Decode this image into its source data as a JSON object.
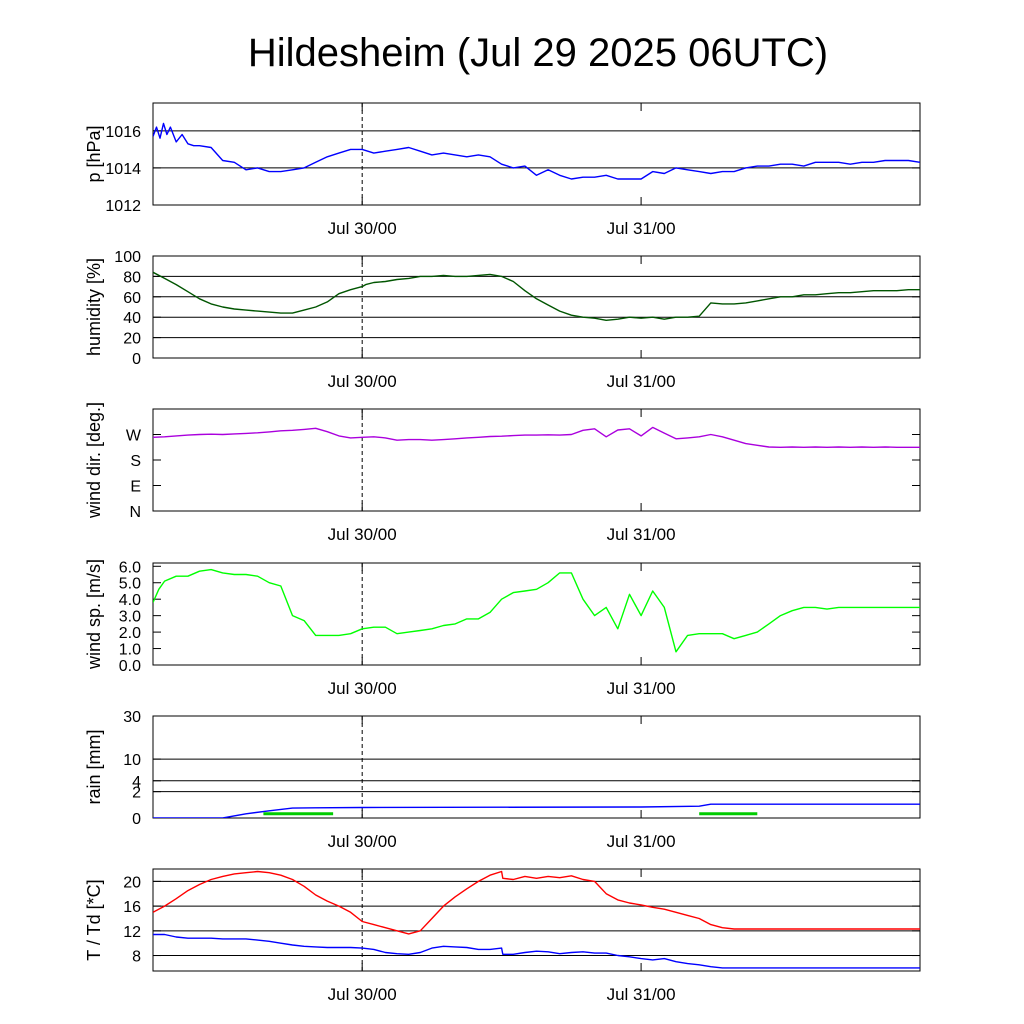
{
  "title": "Hildesheim (Jul 29 2025 06UTC)",
  "colors": {
    "pressure": "#0000ff",
    "humidity": "#005500",
    "wind_dir": "#aa00dd",
    "wind_speed": "#00ff00",
    "rain_total": "#0000ff",
    "rain_rate": "#00cc00",
    "temperature": "#ff0000",
    "dewpoint": "#0000ff"
  },
  "x_tick_labels": [
    "Jul 30/00",
    "Jul 31/00"
  ],
  "chart_data": [
    {
      "type": "line",
      "ylabel": "p [hPa]",
      "ylim": [
        1012,
        1017.5
      ],
      "y_ticks": [
        1012,
        1014,
        1016
      ],
      "y_tick_labels": [
        "1012",
        "1014",
        "1016"
      ],
      "grid_y": [
        1014,
        1016
      ],
      "x_ticks_hours": [
        18,
        42,
        66
      ],
      "x_tick_labels": [
        "Jul 30/00",
        "Jul 31/00"
      ],
      "series": [
        {
          "color_key": "pressure",
          "x": [
            0,
            0.3,
            0.6,
            0.9,
            1.2,
            1.5,
            2,
            2.5,
            3,
            3.5,
            4,
            5,
            6,
            7,
            8,
            9,
            10,
            11,
            12,
            13,
            14,
            15,
            16,
            17,
            18,
            19,
            20,
            21,
            22,
            23,
            24,
            25,
            26,
            27,
            28,
            29,
            30,
            31,
            32,
            33,
            34,
            35,
            36,
            37,
            38,
            39,
            40,
            41,
            42,
            43,
            44,
            45,
            46,
            47,
            48,
            49,
            50,
            51,
            52,
            53,
            54,
            55,
            56,
            57,
            58,
            59,
            60,
            61,
            62,
            63,
            64,
            65,
            66
          ],
          "y": [
            1015.7,
            1016.2,
            1015.6,
            1016.4,
            1015.8,
            1016.2,
            1015.4,
            1015.8,
            1015.3,
            1015.2,
            1015.2,
            1015.1,
            1014.4,
            1014.3,
            1013.9,
            1014.0,
            1013.8,
            1013.8,
            1013.9,
            1014.0,
            1014.3,
            1014.6,
            1014.8,
            1015.0,
            1015.0,
            1014.8,
            1014.9,
            1015.0,
            1015.1,
            1014.9,
            1014.7,
            1014.8,
            1014.7,
            1014.6,
            1014.7,
            1014.6,
            1014.2,
            1014.0,
            1014.1,
            1013.6,
            1013.9,
            1013.6,
            1013.4,
            1013.5,
            1013.5,
            1013.6,
            1013.4,
            1013.4,
            1013.4,
            1013.8,
            1013.7,
            1014.0,
            1013.9,
            1013.8,
            1013.7,
            1013.8,
            1013.8,
            1014.0,
            1014.1,
            1014.1,
            1014.2,
            1014.2,
            1014.1,
            1014.3,
            1014.3,
            1014.3,
            1014.2,
            1014.3,
            1014.3,
            1014.4,
            1014.4,
            1014.4,
            1014.3
          ]
        }
      ]
    },
    {
      "type": "line",
      "ylabel": "humidity [%]",
      "ylim": [
        0,
        100
      ],
      "y_ticks": [
        0,
        20,
        40,
        60,
        80,
        100
      ],
      "y_tick_labels": [
        "0",
        "20",
        "40",
        "60",
        "80",
        "100"
      ],
      "grid_y": [
        20,
        40,
        60,
        80
      ],
      "x_ticks_hours": [
        18,
        42,
        66
      ],
      "x_tick_labels": [
        "Jul 30/00",
        "Jul 31/00"
      ],
      "series": [
        {
          "color_key": "humidity",
          "x": [
            0,
            1,
            2,
            3,
            4,
            5,
            6,
            7,
            8,
            9,
            10,
            11,
            12,
            13,
            14,
            15,
            16,
            17,
            18,
            18.3,
            19,
            20,
            21,
            22,
            23,
            24,
            25,
            26,
            27,
            28,
            29,
            30,
            31,
            32,
            33,
            34,
            35,
            36,
            37,
            38,
            39,
            40,
            41,
            42,
            43,
            44,
            45,
            46,
            47,
            48,
            49,
            50,
            51,
            52,
            53,
            54,
            55,
            56,
            57,
            58,
            59,
            60,
            61,
            62,
            63,
            64,
            65,
            66
          ],
          "y": [
            84,
            78,
            72,
            65,
            58,
            53,
            50,
            48,
            47,
            46,
            45,
            44,
            44,
            47,
            50,
            55,
            63,
            67,
            70,
            72,
            74,
            75,
            77,
            78,
            80,
            80,
            81,
            80,
            80,
            81,
            82,
            80,
            75,
            66,
            58,
            52,
            46,
            42,
            40,
            39,
            37,
            38,
            40,
            39,
            40,
            38,
            40,
            40,
            41,
            54,
            53,
            53,
            54,
            56,
            58,
            60,
            60,
            62,
            62,
            63,
            64,
            64,
            65,
            66,
            66,
            66,
            67,
            67
          ]
        }
      ]
    },
    {
      "type": "line",
      "ylabel": "wind dir. [deg.]",
      "ylim": [
        0,
        360
      ],
      "y_ticks": [
        0,
        90,
        180,
        270
      ],
      "y_tick_labels": [
        "N",
        "E",
        "S",
        "W"
      ],
      "grid_y": [],
      "x_ticks_hours": [
        18,
        42,
        66
      ],
      "x_tick_labels": [
        "Jul 30/00",
        "Jul 31/00"
      ],
      "series": [
        {
          "color_key": "wind_dir",
          "x": [
            0,
            1,
            2,
            3,
            4,
            5,
            6,
            7,
            8,
            9,
            10,
            11,
            12,
            13,
            14,
            15,
            16,
            17,
            18,
            19,
            20,
            21,
            22,
            23,
            24,
            25,
            26,
            27,
            28,
            29,
            30,
            31,
            32,
            33,
            34,
            35,
            36,
            37,
            38,
            39,
            40,
            41,
            42,
            43,
            44,
            45,
            46,
            47,
            48,
            49,
            50,
            51,
            52,
            53,
            54,
            55,
            56,
            57,
            58,
            59,
            60,
            61,
            62,
            63,
            64,
            65,
            66
          ],
          "y": [
            260,
            262,
            265,
            268,
            270,
            271,
            270,
            272,
            274,
            276,
            279,
            283,
            285,
            288,
            292,
            280,
            265,
            258,
            260,
            262,
            258,
            250,
            252,
            252,
            250,
            252,
            255,
            258,
            260,
            263,
            264,
            266,
            268,
            268,
            269,
            268,
            270,
            285,
            290,
            262,
            286,
            290,
            265,
            295,
            275,
            255,
            258,
            262,
            270,
            262,
            250,
            238,
            232,
            226,
            225,
            226,
            225,
            226,
            225,
            226,
            225,
            226,
            225,
            226,
            225,
            225,
            225
          ]
        }
      ]
    },
    {
      "type": "line",
      "ylabel": "wind sp. [m/s]",
      "ylim": [
        0,
        6.2
      ],
      "y_ticks": [
        0,
        1,
        2,
        3,
        4,
        5,
        6
      ],
      "y_tick_labels": [
        "0.0",
        "1.0",
        "2.0",
        "3.0",
        "4.0",
        "5.0",
        "6.0"
      ],
      "grid_y": [],
      "x_ticks_hours": [
        18,
        42,
        66
      ],
      "x_tick_labels": [
        "Jul 30/00",
        "Jul 31/00"
      ],
      "series": [
        {
          "color_key": "wind_speed",
          "x": [
            0,
            0.5,
            1,
            2,
            3,
            4,
            5,
            6,
            7,
            8,
            9,
            10,
            11,
            12,
            13,
            14,
            15,
            16,
            17,
            18,
            19,
            20,
            21,
            22,
            23,
            24,
            25,
            26,
            27,
            28,
            29,
            30,
            31,
            32,
            33,
            34,
            35,
            36,
            37,
            38,
            39,
            40,
            41,
            42,
            43,
            44,
            45,
            46,
            47,
            48,
            49,
            50,
            51,
            52,
            53,
            54,
            55,
            56,
            57,
            58,
            59,
            60,
            61,
            62,
            63,
            64,
            65,
            66
          ],
          "y": [
            3.8,
            4.6,
            5.1,
            5.4,
            5.4,
            5.7,
            5.8,
            5.6,
            5.5,
            5.5,
            5.4,
            5.0,
            4.8,
            3.0,
            2.7,
            1.8,
            1.8,
            1.8,
            1.9,
            2.2,
            2.3,
            2.3,
            1.9,
            2.0,
            2.1,
            2.2,
            2.4,
            2.5,
            2.8,
            2.8,
            3.2,
            4.0,
            4.4,
            4.5,
            4.6,
            5.0,
            5.6,
            5.6,
            4.0,
            3.0,
            3.5,
            2.2,
            4.3,
            3.0,
            4.5,
            3.5,
            0.8,
            1.8,
            1.9,
            1.9,
            1.9,
            1.6,
            1.8,
            2.0,
            2.5,
            3.0,
            3.3,
            3.5,
            3.5,
            3.4,
            3.5,
            3.5,
            3.5,
            3.5,
            3.5,
            3.5,
            3.5,
            3.5
          ]
        }
      ]
    },
    {
      "type": "line",
      "ylabel": "rain [mm]",
      "ylim": [
        0,
        30
      ],
      "scale": "sqrt",
      "y_ticks": [
        0,
        2,
        4,
        10,
        30
      ],
      "y_tick_labels": [
        "0",
        "2",
        "4",
        "10",
        "30"
      ],
      "grid_y": [
        2,
        4,
        10,
        30
      ],
      "x_ticks_hours": [
        18,
        42,
        66
      ],
      "x_tick_labels": [
        "Jul 30/00",
        "Jul 31/00"
      ],
      "series": [
        {
          "color_key": "rain_total",
          "x": [
            0,
            6,
            8,
            10,
            12,
            14,
            18,
            42,
            47,
            48,
            66
          ],
          "y": [
            0,
            0,
            0.05,
            0.15,
            0.28,
            0.3,
            0.32,
            0.35,
            0.4,
            0.55,
            0.55
          ]
        },
        {
          "color_key": "rain_rate",
          "x": [
            9.5,
            15.5,
            47,
            52
          ],
          "y": [
            0.03,
            0.03,
            0.03,
            0.03
          ],
          "segments": [
            [
              0,
              1
            ],
            [
              2,
              3
            ]
          ]
        }
      ]
    },
    {
      "type": "line",
      "ylabel": "T / Td [*C]",
      "ylim": [
        5.5,
        22
      ],
      "y_ticks": [
        8,
        12,
        16,
        20
      ],
      "y_tick_labels": [
        "8",
        "12",
        "16",
        "20"
      ],
      "grid_y": [
        8,
        12,
        16,
        20
      ],
      "x_ticks_hours": [
        18,
        42,
        66
      ],
      "x_tick_labels": [
        "Jul 30/00",
        "Jul 31/00"
      ],
      "series": [
        {
          "color_key": "temperature",
          "x": [
            0,
            1,
            2,
            3,
            4,
            5,
            6,
            7,
            8,
            9,
            10,
            11,
            12,
            13,
            14,
            15,
            16,
            17,
            18,
            19,
            20,
            21,
            22,
            23,
            24,
            25,
            26,
            27,
            28,
            29,
            30,
            30.1,
            31,
            32,
            33,
            34,
            35,
            36,
            37,
            38,
            39,
            40,
            41,
            42,
            43,
            44,
            45,
            46,
            47,
            48,
            49,
            50,
            51,
            52,
            53,
            54,
            55,
            56,
            57,
            58,
            59,
            60,
            61,
            62,
            63,
            64,
            65,
            66
          ],
          "y": [
            15.0,
            16.0,
            17.2,
            18.5,
            19.5,
            20.3,
            20.8,
            21.2,
            21.4,
            21.6,
            21.4,
            21.0,
            20.3,
            19.2,
            17.8,
            16.8,
            16.0,
            15.0,
            13.5,
            13.0,
            12.5,
            12.0,
            11.5,
            12.0,
            14.0,
            16.0,
            17.5,
            18.8,
            20.0,
            21.0,
            21.6,
            20.5,
            20.3,
            20.8,
            20.5,
            20.8,
            20.6,
            20.9,
            20.3,
            20.0,
            18.0,
            17.0,
            16.5,
            16.2,
            15.8,
            15.5,
            15.0,
            14.5,
            14.0,
            13.0,
            12.5,
            12.3,
            12.3,
            12.3,
            12.3,
            12.3,
            12.3,
            12.3,
            12.3,
            12.3,
            12.3,
            12.3,
            12.3,
            12.3,
            12.3,
            12.3,
            12.3,
            12.3
          ]
        },
        {
          "color_key": "dewpoint",
          "x": [
            0,
            1,
            2,
            3,
            4,
            5,
            6,
            7,
            8,
            9,
            10,
            11,
            12,
            13,
            14,
            15,
            16,
            17,
            18,
            19,
            20,
            21,
            22,
            23,
            24,
            25,
            26,
            27,
            28,
            29,
            30,
            30.1,
            31,
            32,
            33,
            34,
            35,
            36,
            37,
            38,
            39,
            40,
            41,
            42,
            43,
            44,
            45,
            46,
            47,
            48,
            49,
            50,
            51,
            52,
            53,
            54,
            55,
            56,
            57,
            58,
            59,
            60,
            61,
            62,
            63,
            64,
            65,
            66
          ],
          "y": [
            11.4,
            11.4,
            11.0,
            10.8,
            10.8,
            10.8,
            10.7,
            10.7,
            10.7,
            10.5,
            10.3,
            10.0,
            9.7,
            9.5,
            9.4,
            9.3,
            9.3,
            9.3,
            9.2,
            9.0,
            8.5,
            8.3,
            8.2,
            8.5,
            9.2,
            9.5,
            9.4,
            9.3,
            9.0,
            9.0,
            9.2,
            8.2,
            8.2,
            8.5,
            8.7,
            8.6,
            8.3,
            8.5,
            8.6,
            8.4,
            8.4,
            8.0,
            7.8,
            7.5,
            7.3,
            7.5,
            7.0,
            6.7,
            6.5,
            6.2,
            6.0,
            6.0,
            6.0,
            6.0,
            6.0,
            6.0,
            6.0,
            6.0,
            6.0,
            6.0,
            6.0,
            6.0,
            6.0,
            6.0,
            6.0,
            6.0,
            6.0,
            6.0
          ]
        }
      ]
    }
  ]
}
